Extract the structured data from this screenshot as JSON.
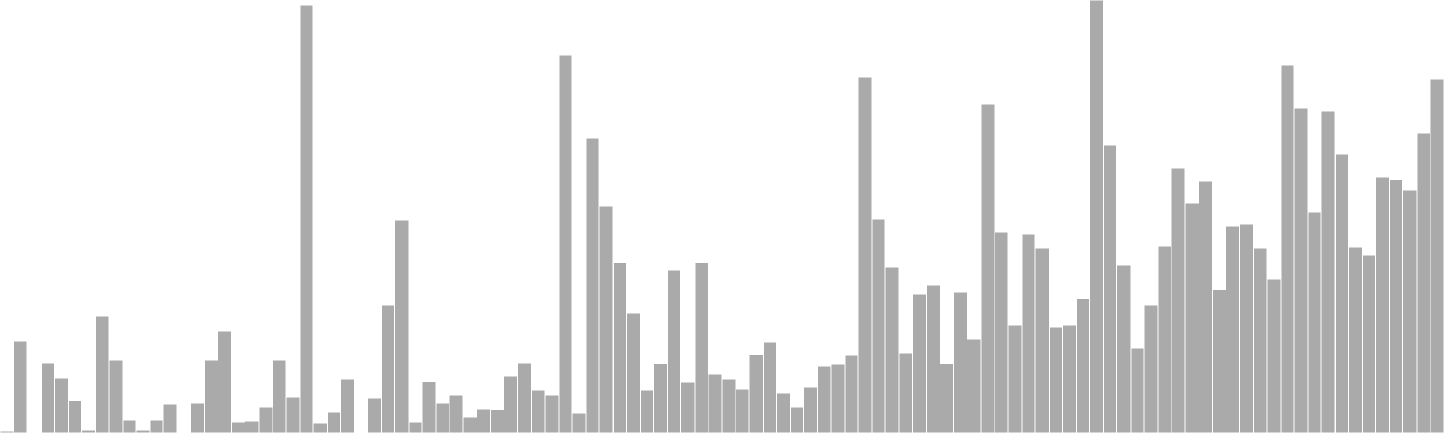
{
  "chart_data": {
    "type": "bar",
    "bar_color": "#aaaaaa",
    "bar_edge_color": "#ffffff",
    "background": "#ffffff",
    "grid": false,
    "axes_visible": false,
    "ylim": [
      0,
      480
    ],
    "values": [
      2,
      102,
      1,
      78,
      61,
      36,
      3,
      130,
      81,
      14,
      3,
      14,
      32,
      0,
      33,
      81,
      113,
      12,
      13,
      29,
      81,
      40,
      474,
      11,
      23,
      60,
      0,
      39,
      142,
      236,
      12,
      57,
      33,
      42,
      18,
      27,
      26,
      63,
      78,
      48,
      42,
      419,
      22,
      327,
      252,
      189,
      133,
      48,
      77,
      181,
      56,
      189,
      65,
      60,
      49,
      87,
      101,
      44,
      29,
      51,
      74,
      76,
      86,
      395,
      237,
      184,
      89,
      154,
      164,
      77,
      156,
      104,
      365,
      223,
      120,
      221,
      205,
      117,
      120,
      149,
      480,
      319,
      186,
      94,
      142,
      207,
      294,
      255,
      279,
      159,
      229,
      232,
      205,
      171,
      408,
      360,
      245,
      357,
      309,
      206,
      197,
      284,
      281,
      269,
      333,
      392
    ]
  }
}
